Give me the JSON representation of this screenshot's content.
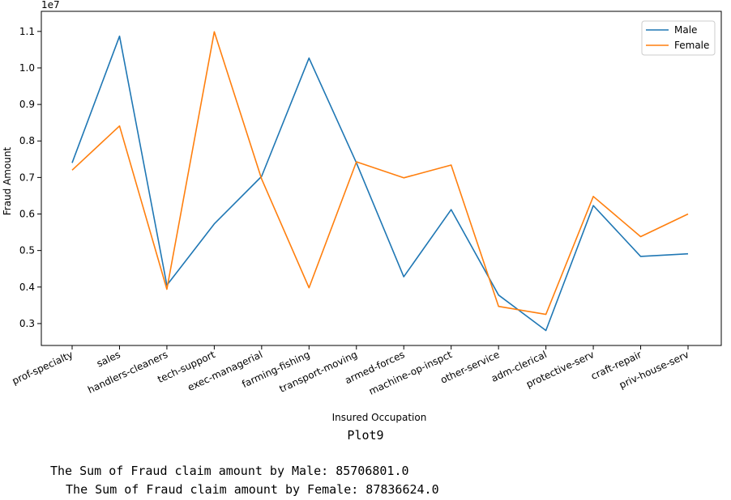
{
  "chart_data": {
    "type": "line",
    "categories": [
      "prof-specialty",
      "sales",
      "handlers-cleaners",
      "tech-support",
      "exec-managerial",
      "farming-fishing",
      "transport-moving",
      "armed-forces",
      "machine-op-inspct",
      "other-service",
      "adm-clerical",
      "protective-serv",
      "craft-repair",
      "priv-house-serv"
    ],
    "series": [
      {
        "name": "Male",
        "color": "#1f77b4",
        "values": [
          7.4,
          10.87,
          4.05,
          5.73,
          7.03,
          10.27,
          7.4,
          4.28,
          6.12,
          3.78,
          2.81,
          6.23,
          4.84,
          4.91
        ]
      },
      {
        "name": "Female",
        "color": "#ff7f0e",
        "values": [
          7.2,
          8.41,
          3.94,
          10.99,
          6.96,
          3.98,
          7.43,
          6.99,
          7.34,
          3.47,
          3.25,
          6.48,
          5.38,
          6.0
        ]
      }
    ],
    "xlabel": "Insured Occupation",
    "ylabel": "Fraud Amount",
    "y_scale_label": "1e7",
    "yticks": [
      0.3,
      0.4,
      0.5,
      0.6,
      0.7,
      0.8,
      0.9,
      1.0,
      1.1
    ],
    "ytick_labels": [
      "0.3",
      "0.4",
      "0.5",
      "0.6",
      "0.7",
      "0.8",
      "0.9",
      "1.0",
      "1.1"
    ],
    "ylim": [
      0.24,
      1.155
    ],
    "legend_position": "top-right",
    "grid": false
  },
  "caption": "Plot9",
  "output_lines": [
    "The Sum of Fraud claim amount by Male: 85706801.0",
    " The Sum of Fraud claim amount by Female: 87836624.0"
  ]
}
